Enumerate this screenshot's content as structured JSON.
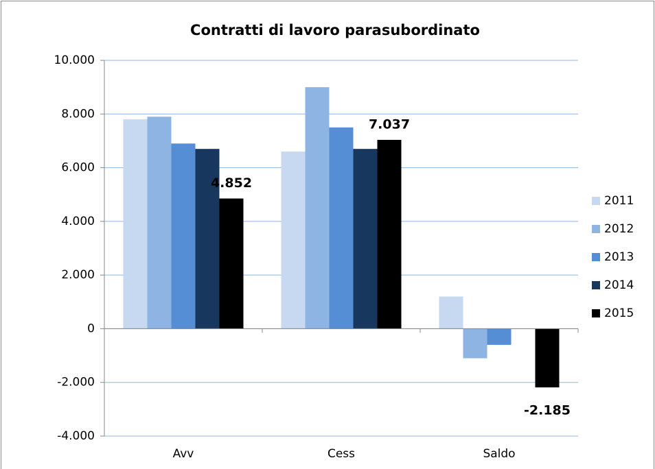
{
  "chart_data": {
    "type": "bar",
    "title": "Contratti di lavoro parasubordinato",
    "categories": [
      "Avv",
      "Cess",
      "Saldo"
    ],
    "series": [
      {
        "name": "2011",
        "color": "#c6d9f1",
        "values": [
          7800,
          6600,
          1200
        ]
      },
      {
        "name": "2012",
        "color": "#8eb4e3",
        "values": [
          7900,
          9000,
          -1100
        ]
      },
      {
        "name": "2013",
        "color": "#558ed5",
        "values": [
          6900,
          7500,
          -600
        ]
      },
      {
        "name": "2014",
        "color": "#17375e",
        "values": [
          6700,
          6700,
          0
        ]
      },
      {
        "name": "2015",
        "color": "#000000",
        "values": [
          4852,
          7037,
          -2185
        ],
        "value_labels": [
          "4.852",
          "7.037",
          "-2.185"
        ]
      }
    ],
    "ylim": [
      -4000,
      10000
    ],
    "yticks": [
      {
        "value": -4000,
        "label": "-4.000"
      },
      {
        "value": -2000,
        "label": "-2.000"
      },
      0,
      {
        "value": 2000,
        "label": "2.000"
      },
      {
        "value": 4000,
        "label": "4.000"
      },
      {
        "value": 6000,
        "label": "6.000"
      },
      {
        "value": 8000,
        "label": "8.000"
      },
      {
        "value": 10000,
        "label": "10.000"
      }
    ],
    "grid": true,
    "legend": "right"
  }
}
